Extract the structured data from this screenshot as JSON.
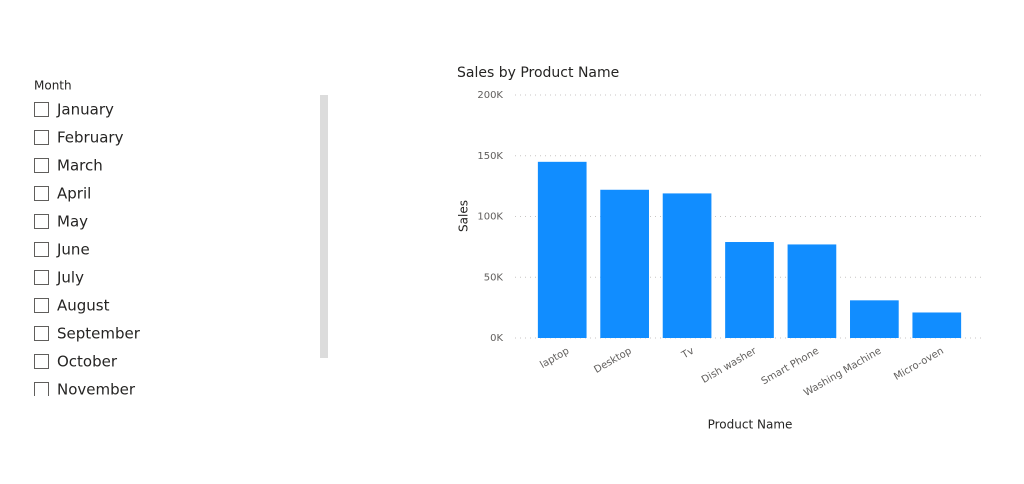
{
  "slicer": {
    "title": "Month",
    "items": [
      "January",
      "February",
      "March",
      "April",
      "May",
      "June",
      "July",
      "August",
      "September",
      "October",
      "November"
    ]
  },
  "chart_data": {
    "type": "bar",
    "title": "Sales by Product Name",
    "x_label": "Product Name",
    "y_label": "Sales",
    "categories": [
      "laptop",
      "Desktop",
      "Tv",
      "Dish washer",
      "Smart Phone",
      "Washing Machine",
      "Micro-oven"
    ],
    "values": [
      145000,
      122000,
      119000,
      79000,
      77000,
      31000,
      21000
    ],
    "color": "#118dff",
    "ylim": [
      0,
      200000
    ],
    "yticks": [
      {
        "value": 0,
        "label": "0K"
      },
      {
        "value": 50000,
        "label": "50K"
      },
      {
        "value": 100000,
        "label": "100K"
      },
      {
        "value": 150000,
        "label": "150K"
      },
      {
        "value": 200000,
        "label": "200K"
      }
    ],
    "grid": true
  }
}
